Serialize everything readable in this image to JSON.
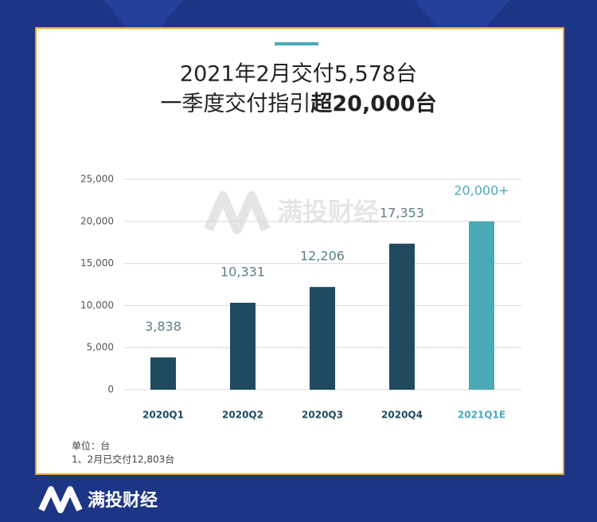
{
  "chart_data": {
    "type": "bar",
    "title": "2021年2月交付5,578台",
    "subtitle": {
      "text": "一季度交付指引",
      "bold": "超20,000台"
    },
    "categories": [
      "2020Q1",
      "2020Q2",
      "2020Q3",
      "2020Q4",
      "2021Q1E"
    ],
    "values": [
      3838,
      10331,
      12206,
      17353,
      20000
    ],
    "value_labels": [
      "3,838",
      "10,331",
      "12,206",
      "17,353",
      "20,000+"
    ],
    "colors": [
      "#1f4a60",
      "#1f4a60",
      "#1f4a60",
      "#1f4a60",
      "#4aa9b6"
    ],
    "ylim": [
      0,
      25000
    ],
    "yticks": [
      0,
      {
        "value": 5000,
        "label": "5,000"
      },
      {
        "value": 10000,
        "label": "10,000"
      },
      {
        "value": 15000,
        "label": "15,000"
      },
      {
        "value": 20000,
        "label": "20,000"
      },
      {
        "value": 25000,
        "label": "25,000"
      }
    ],
    "grid": true,
    "notes": [
      "单位：台",
      "1、2月已交付12,803台"
    ],
    "watermark": "满投财经"
  }
}
